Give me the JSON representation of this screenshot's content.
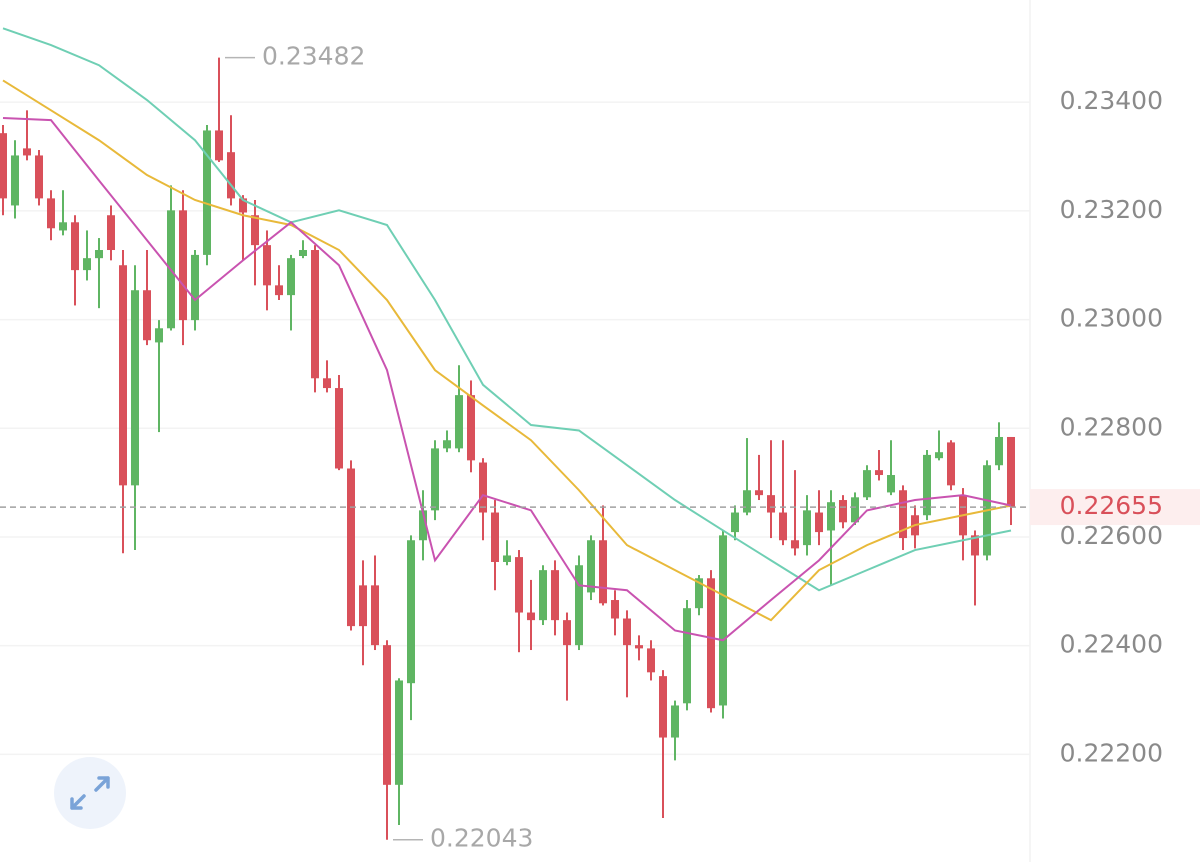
{
  "chart_data": {
    "type": "candlestick",
    "up_color": "#5fb563",
    "down_color": "#d9505a",
    "open": [
      0.23343,
      0.2321,
      0.23315,
      0.23302,
      0.23223,
      0.23164,
      0.23179,
      0.23091,
      0.23113,
      0.23192,
      0.231,
      0.22695,
      0.23054,
      0.22958,
      0.22984,
      0.23201,
      0.22999,
      0.23119,
      0.23348,
      0.23308,
      0.23223,
      0.23192,
      0.23137,
      0.23063,
      0.23045,
      0.23117,
      0.23128,
      0.22892,
      0.22874,
      0.22726,
      0.22511,
      0.22511,
      0.22401,
      0.22144,
      0.22331,
      0.22594,
      0.22649,
      0.22763,
      0.22763,
      0.22861,
      0.22737,
      0.22645,
      0.22554,
      0.22563,
      0.22461,
      0.22447,
      0.22539,
      0.22447,
      0.22401,
      0.22498,
      0.22594,
      0.22484,
      0.2245,
      0.22401,
      0.22395,
      0.22344,
      0.22231,
      0.22294,
      0.22469,
      0.22524,
      0.2229,
      0.22609,
      0.22645,
      0.22686,
      0.22677,
      0.22645,
      0.22594,
      0.22585,
      0.22645,
      0.22612,
      0.22668,
      0.22627,
      0.22673,
      0.22723,
      0.22682,
      0.22686,
      0.2264,
      0.2264,
      0.22745,
      0.22774,
      0.22677,
      0.22603,
      0.22566,
      0.22732,
      0.22784
    ],
    "high": [
      0.23358,
      0.2333,
      0.23385,
      0.23312,
      0.23238,
      0.23238,
      0.23192,
      0.23164,
      0.2315,
      0.2321,
      0.23128,
      0.231,
      0.23128,
      0.22999,
      0.23247,
      0.23238,
      0.23128,
      0.23358,
      0.23482,
      0.23376,
      0.23229,
      0.2322,
      0.23164,
      0.231,
      0.23119,
      0.23146,
      0.23137,
      0.22925,
      0.22898,
      0.22741,
      0.22557,
      0.22566,
      0.2241,
      0.2234,
      0.22603,
      0.22686,
      0.22778,
      0.22796,
      0.22916,
      0.22888,
      0.22745,
      0.22668,
      0.22594,
      0.22576,
      0.22521,
      0.22548,
      0.22557,
      0.22461,
      0.22566,
      0.22603,
      0.22658,
      0.22502,
      0.22465,
      0.22419,
      0.2241,
      0.22355,
      0.22299,
      0.22484,
      0.2253,
      0.22539,
      0.22612,
      0.22658,
      0.22782,
      0.22751,
      0.22778,
      0.22778,
      0.22723,
      0.22677,
      0.22686,
      0.22686,
      0.22677,
      0.22682,
      0.22732,
      0.2276,
      0.22778,
      0.22695,
      0.22658,
      0.2276,
      0.22796,
      0.22778,
      0.2269,
      0.22612,
      0.22741,
      0.22811,
      0.22784
    ],
    "low": [
      0.23192,
      0.23186,
      0.23293,
      0.2321,
      0.23146,
      0.23155,
      0.23026,
      0.23072,
      0.23021,
      0.23109,
      0.2257,
      0.22576,
      0.22953,
      0.22793,
      0.2298,
      0.22953,
      0.2298,
      0.231,
      0.2329,
      0.2321,
      0.23109,
      0.23063,
      0.23017,
      0.23036,
      0.2298,
      0.23113,
      0.22866,
      0.22866,
      0.22723,
      0.22428,
      0.22364,
      0.22392,
      0.22043,
      0.2207,
      0.22263,
      0.22557,
      0.22631,
      0.22756,
      0.22756,
      0.22719,
      0.22594,
      0.22502,
      0.22548,
      0.22388,
      0.22392,
      0.22438,
      0.22419,
      0.22299,
      0.22392,
      0.22484,
      0.22474,
      0.22419,
      0.22305,
      0.22373,
      0.22336,
      0.22083,
      0.22189,
      0.22281,
      0.22456,
      0.22277,
      0.22266,
      0.22594,
      0.2264,
      0.22668,
      0.22598,
      0.22585,
      0.22566,
      0.22566,
      0.22585,
      0.22511,
      0.22616,
      0.22622,
      0.22668,
      0.22704,
      0.22677,
      0.22576,
      0.22579,
      0.22631,
      0.22741,
      0.22686,
      0.22557,
      0.22474,
      0.22557,
      0.22723,
      0.22622
    ],
    "close": [
      0.23223,
      0.23302,
      0.23302,
      0.23223,
      0.23168,
      0.23179,
      0.23091,
      0.23113,
      0.23128,
      0.23128,
      0.22695,
      0.23054,
      0.22962,
      0.22984,
      0.23201,
      0.22999,
      0.23119,
      0.23348,
      0.23293,
      0.23223,
      0.23197,
      0.23137,
      0.23063,
      0.23045,
      0.23113,
      0.23128,
      0.22892,
      0.22874,
      0.22726,
      0.22436,
      0.22436,
      0.22401,
      0.22144,
      0.22336,
      0.22594,
      0.22649,
      0.22763,
      0.22778,
      0.22861,
      0.22741,
      0.22645,
      0.22554,
      0.22566,
      0.22461,
      0.22447,
      0.22539,
      0.22447,
      0.22401,
      0.22548,
      0.22594,
      0.22478,
      0.2245,
      0.22401,
      0.22395,
      0.22351,
      0.22231,
      0.2229,
      0.22469,
      0.22524,
      0.22285,
      0.22603,
      0.22645,
      0.22686,
      0.22677,
      0.22645,
      0.22594,
      0.22579,
      0.22649,
      0.22609,
      0.22664,
      0.22627,
      0.22673,
      0.22723,
      0.22714,
      0.22714,
      0.22598,
      0.22603,
      0.22751,
      0.22756,
      0.22695,
      0.22603,
      0.22566,
      0.22732,
      0.22784,
      0.22655
    ],
    "lines": [
      {
        "color": "#6fcfb4",
        "x": [
          0,
          4,
          8,
          12,
          16,
          20,
          24,
          28,
          32,
          36,
          40,
          44,
          48,
          52,
          56,
          60,
          64,
          68,
          72,
          76,
          80,
          84
        ],
        "values": [
          0.23536,
          0.23505,
          0.23468,
          0.23404,
          0.2333,
          0.2322,
          0.23179,
          0.23201,
          0.23174,
          0.23036,
          0.2288,
          0.22806,
          0.22796,
          0.22732,
          0.22668,
          0.22612,
          0.22557,
          0.22502,
          0.22539,
          0.22576,
          0.22594,
          0.22612
        ]
      },
      {
        "color": "#e8b93a",
        "x": [
          0,
          4,
          8,
          12,
          16,
          20,
          24,
          28,
          32,
          36,
          40,
          44,
          48,
          52,
          56,
          60,
          64,
          68,
          72,
          76,
          80,
          84
        ],
        "values": [
          0.2344,
          0.23385,
          0.2333,
          0.23266,
          0.2322,
          0.23192,
          0.23174,
          0.23128,
          0.23036,
          0.22907,
          0.22842,
          0.22778,
          0.22686,
          0.22585,
          0.22539,
          0.22493,
          0.22447,
          0.22539,
          0.22585,
          0.22622,
          0.2264,
          0.22658
        ]
      },
      {
        "color": "#c953b0",
        "x": [
          0,
          4,
          8,
          12,
          16,
          20,
          24,
          28,
          32,
          36,
          40,
          44,
          48,
          52,
          56,
          60,
          64,
          68,
          72,
          76,
          80,
          84
        ],
        "values": [
          0.23371,
          0.23367,
          0.23256,
          0.23146,
          0.23036,
          0.23109,
          0.23179,
          0.231,
          0.22907,
          0.22557,
          0.22677,
          0.22649,
          0.22511,
          0.22502,
          0.22428,
          0.2241,
          0.22484,
          0.22557,
          0.22649,
          0.22668,
          0.22677,
          0.22658
        ]
      }
    ],
    "ylim": [
      0.22002,
      0.23588
    ],
    "yticks": [
      {
        "value": 0.222,
        "label": "0.22200"
      },
      {
        "value": 0.224,
        "label": "0.22400"
      },
      {
        "value": 0.226,
        "label": "0.22600"
      },
      {
        "value": 0.228,
        "label": "0.22800"
      },
      {
        "value": 0.23,
        "label": "0.23000"
      },
      {
        "value": 0.232,
        "label": "0.23200"
      },
      {
        "value": 0.234,
        "label": "0.23400"
      }
    ],
    "grid": true
  }
}
